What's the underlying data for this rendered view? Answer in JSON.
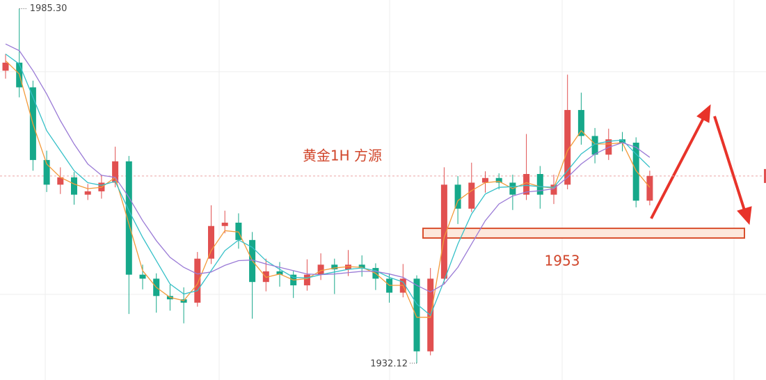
{
  "chart_data": {
    "type": "candlestick",
    "title": "黄金1H  方源",
    "ohlc": [
      [
        1976.0,
        1978.5,
        1974.8,
        1977.2
      ],
      [
        1977.2,
        1985.3,
        1972.0,
        1973.5
      ],
      [
        1973.5,
        1974.5,
        1961.0,
        1962.6
      ],
      [
        1962.6,
        1964.0,
        1957.8,
        1958.9
      ],
      [
        1958.9,
        1961.5,
        1957.5,
        1960.0
      ],
      [
        1960.0,
        1960.8,
        1955.9,
        1957.4
      ],
      [
        1957.4,
        1959.0,
        1956.6,
        1957.9
      ],
      [
        1957.9,
        1960.3,
        1956.8,
        1959.2
      ],
      [
        1959.2,
        1964.6,
        1958.5,
        1962.4
      ],
      [
        1962.4,
        1963.2,
        1939.5,
        1945.4
      ],
      [
        1945.4,
        1946.9,
        1943.2,
        1944.8
      ],
      [
        1944.8,
        1945.6,
        1939.7,
        1942.2
      ],
      [
        1942.2,
        1943.9,
        1940.0,
        1941.7
      ],
      [
        1941.7,
        1943.5,
        1938.1,
        1941.2
      ],
      [
        1941.2,
        1948.8,
        1940.6,
        1947.8
      ],
      [
        1947.8,
        1955.8,
        1947.0,
        1952.7
      ],
      [
        1952.7,
        1955.0,
        1951.6,
        1953.2
      ],
      [
        1953.2,
        1954.6,
        1949.3,
        1950.6
      ],
      [
        1950.6,
        1951.8,
        1938.8,
        1944.3
      ],
      [
        1944.3,
        1947.8,
        1942.9,
        1945.9
      ],
      [
        1945.9,
        1947.3,
        1943.6,
        1945.4
      ],
      [
        1945.4,
        1946.0,
        1941.9,
        1943.8
      ],
      [
        1943.8,
        1947.7,
        1943.0,
        1945.4
      ],
      [
        1945.4,
        1948.6,
        1944.6,
        1946.9
      ],
      [
        1946.9,
        1947.8,
        1942.5,
        1946.2
      ],
      [
        1946.2,
        1949.1,
        1945.2,
        1946.9
      ],
      [
        1946.9,
        1948.3,
        1945.1,
        1946.4
      ],
      [
        1946.4,
        1947.1,
        1943.1,
        1944.8
      ],
      [
        1944.8,
        1945.6,
        1941.2,
        1942.7
      ],
      [
        1942.7,
        1947.0,
        1942.0,
        1944.8
      ],
      [
        1944.8,
        1945.3,
        1932.12,
        1933.9
      ],
      [
        1933.9,
        1946.4,
        1933.3,
        1944.8
      ],
      [
        1944.8,
        1961.5,
        1944.0,
        1958.9
      ],
      [
        1958.9,
        1960.2,
        1953.0,
        1955.3
      ],
      [
        1955.3,
        1962.2,
        1954.8,
        1959.2
      ],
      [
        1959.2,
        1960.9,
        1957.7,
        1959.9
      ],
      [
        1959.9,
        1960.6,
        1958.2,
        1959.2
      ],
      [
        1959.2,
        1960.4,
        1955.1,
        1957.4
      ],
      [
        1957.4,
        1966.5,
        1956.6,
        1960.5
      ],
      [
        1960.5,
        1961.7,
        1955.3,
        1957.4
      ],
      [
        1957.4,
        1960.4,
        1956.0,
        1958.9
      ],
      [
        1958.9,
        1975.4,
        1958.2,
        1970.1
      ],
      [
        1970.1,
        1972.7,
        1964.9,
        1966.2
      ],
      [
        1966.2,
        1967.4,
        1962.1,
        1963.4
      ],
      [
        1963.4,
        1967.3,
        1962.6,
        1965.7
      ],
      [
        1965.7,
        1966.8,
        1963.9,
        1965.2
      ],
      [
        1965.2,
        1966.0,
        1955.5,
        1956.5
      ],
      [
        1956.5,
        1961.0,
        1955.8,
        1960.2
      ]
    ],
    "up_color": "#e15050",
    "down_color": "#16a88a",
    "series": [
      {
        "color": "#f39a3a",
        "values": [
          1977.5,
          1975.5,
          1968,
          1962,
          1960,
          1959,
          1958.3,
          1958.5,
          1960,
          1953,
          1946,
          1943.5,
          1942,
          1941.5,
          1944,
          1949,
          1952,
          1951.8,
          1947.5,
          1945,
          1945.5,
          1944.6,
          1944.8,
          1946,
          1946.4,
          1946.6,
          1946.5,
          1945.6,
          1943.8,
          1943.8,
          1939,
          1939,
          1951,
          1956.5,
          1958,
          1959.2,
          1959.4,
          1958.3,
          1959.2,
          1958.6,
          1958.4,
          1964,
          1967,
          1965,
          1965,
          1965.2,
          1961,
          1958.5
        ]
      },
      {
        "color": "#35c0c8",
        "values": [
          1978.5,
          1977,
          1972,
          1967,
          1964,
          1961,
          1959.2,
          1958.8,
          1959.4,
          1955,
          1951,
          1947.5,
          1944,
          1942.5,
          1943,
          1946,
          1949,
          1950.6,
          1949.5,
          1947.5,
          1946.2,
          1945,
          1944.9,
          1945.4,
          1945.8,
          1946.2,
          1946.4,
          1946,
          1945,
          1944.3,
          1941,
          1939.3,
          1944.5,
          1950,
          1954.5,
          1957.5,
          1958.5,
          1958.6,
          1958.8,
          1958.6,
          1958.5,
          1961,
          1963.5,
          1965,
          1965.4,
          1965.6,
          1963.5,
          1961.5
        ]
      },
      {
        "color": "#9a7ad6",
        "values": [
          1980,
          1979,
          1976,
          1972.5,
          1968.5,
          1965,
          1962,
          1960.3,
          1960,
          1957,
          1953.5,
          1950.5,
          1948,
          1946.5,
          1945.5,
          1945.8,
          1946.8,
          1947.5,
          1947.6,
          1947,
          1946.5,
          1946,
          1945.5,
          1945.4,
          1945.5,
          1945.7,
          1945.9,
          1945.9,
          1945.5,
          1945,
          1943.8,
          1942.8,
          1944,
          1946.5,
          1950,
          1953.5,
          1956,
          1957.2,
          1957.8,
          1958,
          1958.3,
          1960,
          1962,
          1963.5,
          1964.5,
          1965.2,
          1964.5,
          1963
        ]
      }
    ],
    "max_label": "1985.30",
    "min_label": "1932.12",
    "zone": [
      1950.9,
      1952.35
    ],
    "zone_label": "1953",
    "ylim": [
      1929.6,
      1986.6
    ]
  }
}
